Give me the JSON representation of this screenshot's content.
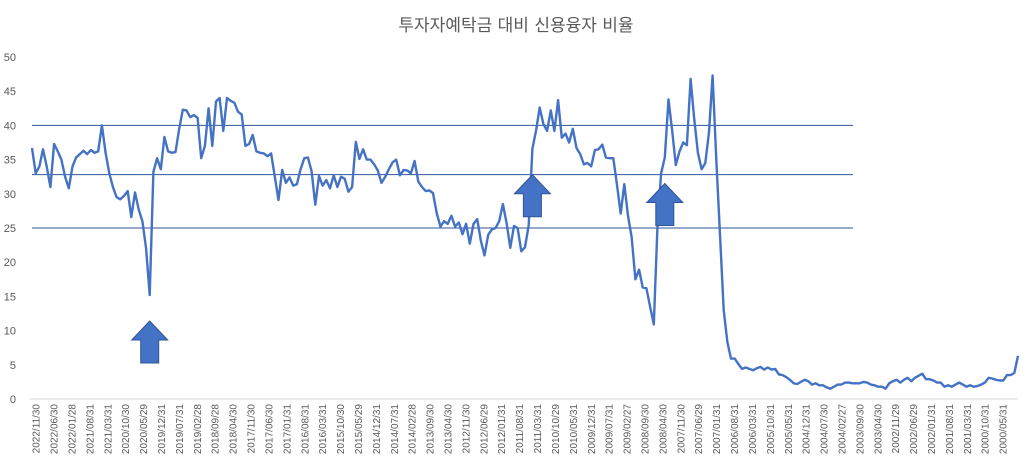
{
  "chart_data": {
    "type": "line",
    "title": "투자자예탁금 대비 신용융자 비율",
    "xlabel": "",
    "ylabel": "",
    "ylim": [
      0,
      50
    ],
    "yticks": [
      0,
      5,
      10,
      15,
      20,
      25,
      30,
      35,
      40,
      45,
      50
    ],
    "x_tick_labels": [
      "2022/11/30",
      "2022/06/30",
      "2022/01/28",
      "2021/08/31",
      "2021/03/31",
      "2020/10/30",
      "2020/05/29",
      "2019/12/31",
      "2019/07/31",
      "2019/02/28",
      "2018/09/28",
      "2018/04/30",
      "2017/11/30",
      "2017/06/30",
      "2017/01/31",
      "2016/08/31",
      "2016/03/31",
      "2015/10/30",
      "2015/05/29",
      "2014/12/31",
      "2014/07/31",
      "2014/02/28",
      "2013/09/30",
      "2013/04/30",
      "2012/11/30",
      "2012/06/29",
      "2012/01/31",
      "2011/08/31",
      "2011/03/31",
      "2010/10/29",
      "2010/05/31",
      "2009/12/31",
      "2009/07/31",
      "2009/02/27",
      "2008/09/30",
      "2008/04/30",
      "2007/11/30",
      "2007/06/29",
      "2007/01/31",
      "2006/08/31",
      "2006/03/31",
      "2005/10/31",
      "2005/05/31",
      "2004/12/31",
      "2004/07/30",
      "2004/02/27",
      "2003/09/30",
      "2003/04/30",
      "2002/11/29",
      "2002/06/29",
      "2002/01/31",
      "2001/08/31",
      "2001/03/31",
      "2000/10/31",
      "2000/05/31"
    ],
    "reference_lines": [
      40,
      32.8,
      25
    ],
    "series": [
      {
        "color": "#4472C4",
        "values": [
          36.7,
          33,
          34,
          36.5,
          34,
          31,
          37.3,
          36.2,
          35,
          32.5,
          30.8,
          34,
          35.3,
          35.8,
          36.3,
          35.8,
          36.4,
          36,
          36.2,
          40,
          36,
          33,
          31,
          29.5,
          29.2,
          29.7,
          30.4,
          26.6,
          30.2,
          27.7,
          26,
          22,
          15.2,
          33.2,
          35.2,
          33.6,
          38.3,
          36.2,
          36,
          36.1,
          39.5,
          42.3,
          42.2,
          41.2,
          41.5,
          41.1,
          35.2,
          37,
          42.5,
          37,
          43.5,
          44,
          39.2,
          44,
          43.6,
          43.3,
          42,
          41.6,
          37,
          37.3,
          38.6,
          36.2,
          36,
          35.9,
          35.5,
          35.9,
          32.5,
          29.1,
          33.5,
          31.6,
          32.4,
          31.2,
          31.4,
          33.6,
          35.2,
          35.3,
          33.3,
          28.4,
          32.6,
          31.2,
          32,
          30.8,
          32.7,
          31,
          32.5,
          32.2,
          30.3,
          31,
          37.6,
          35.1,
          36.5,
          35,
          35,
          34.3,
          33.4,
          31.6,
          32.5,
          33.6,
          34.6,
          35,
          32.7,
          33.5,
          33.4,
          33,
          34.8,
          31.8,
          31,
          30.4,
          30.5,
          30.1,
          27.2,
          25.2,
          26,
          25.6,
          26.8,
          25.2,
          25.8,
          24.1,
          25.6,
          22.7,
          25.6,
          26.3,
          23.1,
          21,
          24,
          24.8,
          25,
          26,
          28.5,
          25.7,
          22.1,
          25.3,
          25,
          21.6,
          22.2,
          25.4,
          36.6,
          39.2,
          42.6,
          40.2,
          39.2,
          42.2,
          39.2,
          43.7,
          38.2,
          38.8,
          37.5,
          39.5,
          36.7,
          35.8,
          34.3,
          34.5,
          34,
          36.4,
          36.5,
          37.2,
          35.3,
          35.2,
          35.2,
          31.3,
          27.1,
          31.4,
          26.8,
          23.6,
          17.5,
          18.9,
          16.3,
          16.2,
          13.5,
          10.9,
          25,
          33,
          35.3,
          43.8,
          39.2,
          34.2,
          36.2,
          37.5,
          37.1,
          46.8,
          41,
          36,
          33.6,
          34.5,
          39,
          47.3,
          35,
          24,
          13,
          8.3,
          5.9,
          5.9,
          5.1,
          4.4,
          4.6,
          4.4,
          4.2,
          4.5,
          4.7,
          4.3,
          4.6,
          4.3,
          4.4,
          3.6,
          3.5,
          3.2,
          2.8,
          2.3,
          2.2,
          2.5,
          2.8,
          2.6,
          2.1,
          2.3,
          2,
          2,
          1.7,
          1.5,
          1.8,
          2.1,
          2.1,
          2.4,
          2.4,
          2.3,
          2.3,
          2.3,
          2.5,
          2.4,
          2.1,
          2,
          1.8,
          1.8,
          1.5,
          2.3,
          2.6,
          2.8,
          2.4,
          2.8,
          3.1,
          2.6,
          3.1,
          3.4,
          3.7,
          2.9,
          2.9,
          2.7,
          2.4,
          2.4,
          1.8,
          2,
          1.8,
          2.1,
          2.4,
          2.1,
          1.8,
          2,
          1.8,
          1.9,
          2.1,
          2.4,
          3.1,
          3,
          2.8,
          2.7,
          2.7,
          3.5,
          3.5,
          3.8,
          6.3
        ]
      }
    ],
    "annotations": [
      {
        "type": "up-arrow",
        "series_index": 32
      },
      {
        "type": "up-arrow",
        "series_index": 136
      },
      {
        "type": "up-arrow",
        "series_index": 172
      }
    ]
  }
}
